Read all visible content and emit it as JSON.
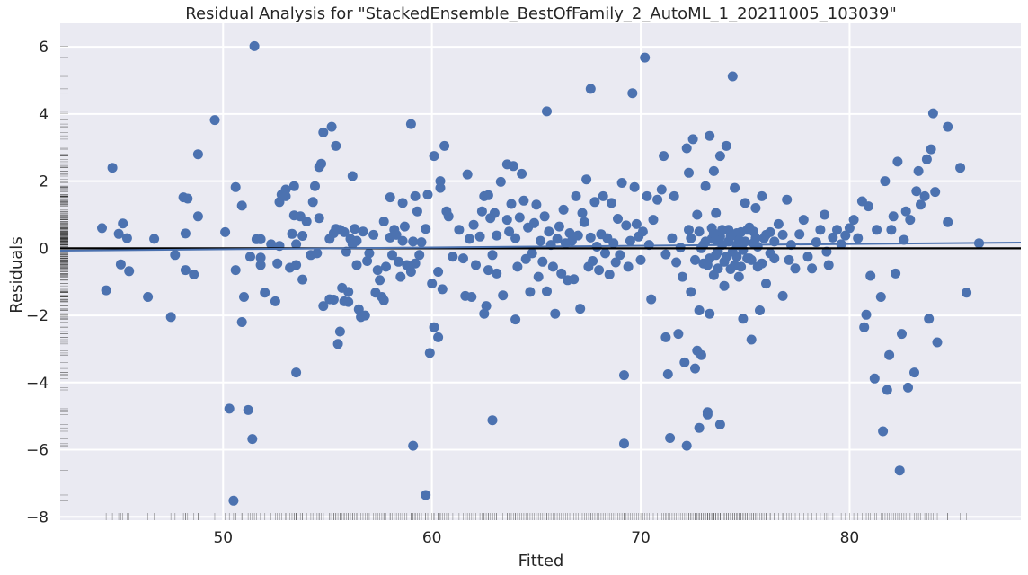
{
  "chart_data": {
    "type": "scatter",
    "title": "Residual Analysis for \"StackedEnsemble_BestOfFamily_2_AutoML_1_20211005_103039\"",
    "xlabel": "Fitted",
    "ylabel": "Residuals",
    "xlim": [
      42.2,
      88.2
    ],
    "ylim": [
      -8.1,
      6.7
    ],
    "xticks": [
      50,
      60,
      70,
      80
    ],
    "yticks": [
      -8,
      -6,
      -4,
      -2,
      0,
      2,
      4,
      6
    ],
    "grid": true,
    "colors": {
      "background": "#eaeaf2",
      "grid": "#ffffff",
      "points": "#4c72b0",
      "zero_line": "#000000",
      "trend_line": "#4c72b0",
      "rug": "#333333"
    },
    "zero_line": 0,
    "trend_line": {
      "x": [
        42.2,
        88.2
      ],
      "y": [
        -0.07,
        0.17
      ]
    },
    "rug": true,
    "points": [
      [
        44.2,
        0.6
      ],
      [
        44.4,
        -1.25
      ],
      [
        44.7,
        2.4
      ],
      [
        45.0,
        0.43
      ],
      [
        45.1,
        -0.48
      ],
      [
        45.2,
        0.74
      ],
      [
        45.4,
        0.3
      ],
      [
        45.5,
        -0.68
      ],
      [
        46.4,
        -1.45
      ],
      [
        46.7,
        0.28
      ],
      [
        47.5,
        -2.05
      ],
      [
        47.7,
        -0.2
      ],
      [
        48.1,
        1.52
      ],
      [
        48.2,
        0.44
      ],
      [
        48.3,
        1.48
      ],
      [
        48.2,
        -0.65
      ],
      [
        48.6,
        -0.78
      ],
      [
        48.8,
        2.8
      ],
      [
        48.8,
        0.95
      ],
      [
        49.6,
        3.82
      ],
      [
        50.1,
        0.48
      ],
      [
        50.3,
        -4.78
      ],
      [
        50.5,
        -7.52
      ],
      [
        50.6,
        1.82
      ],
      [
        50.6,
        -0.65
      ],
      [
        50.9,
        -2.2
      ],
      [
        50.9,
        1.27
      ],
      [
        51.0,
        -1.45
      ],
      [
        51.2,
        -4.82
      ],
      [
        51.3,
        -0.25
      ],
      [
        51.4,
        -5.68
      ],
      [
        51.5,
        6.02
      ],
      [
        51.6,
        0.27
      ],
      [
        51.8,
        0.27
      ],
      [
        51.8,
        -0.5
      ],
      [
        51.8,
        -0.28
      ],
      [
        52.0,
        -1.32
      ],
      [
        52.3,
        0.12
      ],
      [
        52.6,
        -0.45
      ],
      [
        52.5,
        -1.58
      ],
      [
        52.7,
        0.07
      ],
      [
        52.7,
        1.38
      ],
      [
        52.8,
        1.6
      ],
      [
        53.0,
        1.75
      ],
      [
        53.0,
        1.55
      ],
      [
        53.3,
        0.43
      ],
      [
        53.2,
        -0.58
      ],
      [
        53.4,
        0.98
      ],
      [
        53.5,
        -3.7
      ],
      [
        53.4,
        1.85
      ],
      [
        53.5,
        0.12
      ],
      [
        53.5,
        -0.5
      ],
      [
        53.7,
        0.95
      ],
      [
        53.8,
        -0.93
      ],
      [
        53.8,
        0.37
      ],
      [
        54.2,
        -0.2
      ],
      [
        54.0,
        0.8
      ],
      [
        54.3,
        1.38
      ],
      [
        54.4,
        1.85
      ],
      [
        54.5,
        -0.15
      ],
      [
        54.6,
        0.9
      ],
      [
        54.6,
        2.42
      ],
      [
        54.7,
        2.52
      ],
      [
        54.8,
        3.45
      ],
      [
        54.8,
        -1.72
      ],
      [
        55.1,
        0.28
      ],
      [
        55.2,
        3.62
      ],
      [
        55.1,
        -1.52
      ],
      [
        55.3,
        0.45
      ],
      [
        55.3,
        -1.53
      ],
      [
        55.4,
        3.05
      ],
      [
        55.4,
        0.58
      ],
      [
        55.5,
        -2.85
      ],
      [
        55.6,
        0.55
      ],
      [
        55.6,
        -2.48
      ],
      [
        55.7,
        -1.18
      ],
      [
        55.8,
        -1.58
      ],
      [
        55.8,
        0.48
      ],
      [
        55.9,
        -0.1
      ],
      [
        56.0,
        -1.3
      ],
      [
        56.0,
        -1.6
      ],
      [
        56.1,
        0.28
      ],
      [
        56.2,
        2.15
      ],
      [
        56.2,
        0.12
      ],
      [
        56.3,
        0.58
      ],
      [
        56.4,
        -0.5
      ],
      [
        56.4,
        0.22
      ],
      [
        56.5,
        -1.82
      ],
      [
        56.6,
        -2.05
      ],
      [
        56.7,
        0.5
      ],
      [
        56.8,
        -2.0
      ],
      [
        56.9,
        -0.38
      ],
      [
        57.0,
        -0.15
      ],
      [
        57.2,
        0.4
      ],
      [
        57.3,
        -1.32
      ],
      [
        57.4,
        -0.65
      ],
      [
        57.5,
        -0.95
      ],
      [
        57.6,
        -1.45
      ],
      [
        57.7,
        0.8
      ],
      [
        57.7,
        -1.55
      ],
      [
        57.8,
        -0.55
      ],
      [
        58.0,
        0.32
      ],
      [
        58.0,
        1.52
      ],
      [
        58.1,
        -0.2
      ],
      [
        58.2,
        0.55
      ],
      [
        58.3,
        0.4
      ],
      [
        58.4,
        -0.4
      ],
      [
        58.5,
        -0.85
      ],
      [
        58.6,
        0.22
      ],
      [
        58.6,
        1.35
      ],
      [
        58.7,
        0.65
      ],
      [
        58.8,
        -0.5
      ],
      [
        59.0,
        3.7
      ],
      [
        59.0,
        -0.7
      ],
      [
        59.1,
        0.2
      ],
      [
        59.1,
        -5.88
      ],
      [
        59.2,
        1.55
      ],
      [
        59.2,
        -0.45
      ],
      [
        59.3,
        1.1
      ],
      [
        59.4,
        -0.2
      ],
      [
        59.5,
        0.18
      ],
      [
        59.7,
        -7.35
      ],
      [
        59.7,
        0.58
      ],
      [
        59.8,
        1.6
      ],
      [
        59.9,
        -3.12
      ],
      [
        60.0,
        -1.05
      ],
      [
        60.1,
        2.75
      ],
      [
        60.1,
        -2.35
      ],
      [
        60.3,
        -2.65
      ],
      [
        60.3,
        -0.7
      ],
      [
        60.4,
        1.8
      ],
      [
        60.4,
        2.0
      ],
      [
        60.5,
        -1.22
      ],
      [
        60.6,
        3.05
      ],
      [
        60.7,
        1.1
      ],
      [
        60.8,
        0.95
      ],
      [
        61.0,
        -0.25
      ],
      [
        61.3,
        0.55
      ],
      [
        61.5,
        -0.3
      ],
      [
        61.6,
        -1.42
      ],
      [
        61.7,
        2.2
      ],
      [
        61.8,
        0.28
      ],
      [
        61.9,
        -1.45
      ],
      [
        62.0,
        0.7
      ],
      [
        62.1,
        -0.5
      ],
      [
        62.3,
        0.35
      ],
      [
        62.4,
        1.1
      ],
      [
        62.5,
        1.55
      ],
      [
        62.5,
        -1.95
      ],
      [
        62.6,
        -1.72
      ],
      [
        62.7,
        1.58
      ],
      [
        62.7,
        -0.65
      ],
      [
        62.8,
        0.9
      ],
      [
        62.9,
        -0.2
      ],
      [
        62.9,
        -5.12
      ],
      [
        63.0,
        1.05
      ],
      [
        63.1,
        0.38
      ],
      [
        63.1,
        -0.75
      ],
      [
        63.3,
        1.98
      ],
      [
        63.4,
        -1.4
      ],
      [
        63.6,
        2.5
      ],
      [
        63.6,
        0.85
      ],
      [
        63.7,
        0.5
      ],
      [
        63.8,
        1.32
      ],
      [
        63.9,
        2.45
      ],
      [
        64.0,
        -2.12
      ],
      [
        64.0,
        0.3
      ],
      [
        64.1,
        -0.55
      ],
      [
        64.2,
        0.92
      ],
      [
        64.3,
        2.22
      ],
      [
        64.4,
        1.42
      ],
      [
        64.5,
        -0.32
      ],
      [
        64.6,
        0.62
      ],
      [
        64.7,
        -1.3
      ],
      [
        64.8,
        -0.15
      ],
      [
        64.9,
        0.75
      ],
      [
        65.0,
        1.3
      ],
      [
        65.1,
        -0.85
      ],
      [
        65.2,
        0.22
      ],
      [
        65.3,
        -0.4
      ],
      [
        65.4,
        0.95
      ],
      [
        65.5,
        4.08
      ],
      [
        65.5,
        -1.28
      ],
      [
        65.6,
        0.5
      ],
      [
        65.7,
        0.1
      ],
      [
        65.8,
        -0.55
      ],
      [
        65.9,
        -1.95
      ],
      [
        66.0,
        0.28
      ],
      [
        66.1,
        0.65
      ],
      [
        66.2,
        -0.75
      ],
      [
        66.3,
        1.15
      ],
      [
        66.4,
        0.15
      ],
      [
        66.5,
        -0.95
      ],
      [
        66.6,
        0.45
      ],
      [
        66.7,
        0.22
      ],
      [
        66.8,
        -0.92
      ],
      [
        66.9,
        1.55
      ],
      [
        67.0,
        0.38
      ],
      [
        67.1,
        -1.8
      ],
      [
        67.2,
        1.05
      ],
      [
        67.3,
        0.78
      ],
      [
        67.4,
        2.05
      ],
      [
        67.5,
        -0.55
      ],
      [
        67.6,
        4.75
      ],
      [
        67.6,
        0.32
      ],
      [
        67.7,
        -0.38
      ],
      [
        67.8,
        1.38
      ],
      [
        67.9,
        0.05
      ],
      [
        68.0,
        -0.65
      ],
      [
        68.1,
        0.42
      ],
      [
        68.2,
        1.55
      ],
      [
        68.3,
        -0.15
      ],
      [
        68.4,
        0.3
      ],
      [
        68.5,
        -0.78
      ],
      [
        68.6,
        1.35
      ],
      [
        68.7,
        0.15
      ],
      [
        68.8,
        -0.42
      ],
      [
        68.9,
        0.88
      ],
      [
        69.0,
        -0.2
      ],
      [
        69.1,
        1.95
      ],
      [
        69.2,
        -3.78
      ],
      [
        69.2,
        -5.82
      ],
      [
        69.3,
        0.68
      ],
      [
        69.4,
        -0.55
      ],
      [
        69.5,
        0.22
      ],
      [
        69.6,
        4.62
      ],
      [
        69.7,
        1.82
      ],
      [
        69.8,
        0.72
      ],
      [
        69.9,
        0.35
      ],
      [
        70.0,
        -0.35
      ],
      [
        70.1,
        0.5
      ],
      [
        70.2,
        5.68
      ],
      [
        70.3,
        1.55
      ],
      [
        70.4,
        0.1
      ],
      [
        70.5,
        -1.52
      ],
      [
        70.6,
        0.85
      ],
      [
        70.8,
        1.45
      ],
      [
        71.0,
        1.75
      ],
      [
        71.1,
        2.75
      ],
      [
        71.2,
        -2.65
      ],
      [
        71.2,
        -0.18
      ],
      [
        71.3,
        -3.75
      ],
      [
        71.4,
        -5.65
      ],
      [
        71.5,
        0.3
      ],
      [
        71.6,
        1.55
      ],
      [
        71.7,
        -0.42
      ],
      [
        71.8,
        -2.55
      ],
      [
        71.9,
        0.02
      ],
      [
        72.0,
        -0.85
      ],
      [
        72.1,
        -3.4
      ],
      [
        72.2,
        2.98
      ],
      [
        72.2,
        -5.88
      ],
      [
        72.3,
        0.55
      ],
      [
        72.3,
        2.25
      ],
      [
        72.4,
        -1.3
      ],
      [
        72.5,
        3.25
      ],
      [
        72.6,
        -3.58
      ],
      [
        72.7,
        1.0
      ],
      [
        72.7,
        -3.05
      ],
      [
        72.8,
        -5.35
      ],
      [
        72.8,
        -1.85
      ],
      [
        72.9,
        -3.18
      ],
      [
        73.0,
        -0.45
      ],
      [
        73.1,
        1.85
      ],
      [
        73.2,
        -4.88
      ],
      [
        73.2,
        -4.95
      ],
      [
        73.3,
        3.35
      ],
      [
        73.3,
        -1.95
      ],
      [
        73.4,
        0.28
      ],
      [
        73.5,
        2.3
      ],
      [
        73.5,
        -0.8
      ],
      [
        73.6,
        1.05
      ],
      [
        73.7,
        -0.1
      ],
      [
        73.8,
        2.75
      ],
      [
        73.8,
        -5.25
      ],
      [
        73.9,
        0.55
      ],
      [
        74.0,
        -1.12
      ],
      [
        74.1,
        3.05
      ],
      [
        74.2,
        0.2
      ],
      [
        74.3,
        -0.62
      ],
      [
        74.4,
        5.12
      ],
      [
        74.5,
        1.8
      ],
      [
        74.6,
        0.1
      ],
      [
        74.7,
        -0.85
      ],
      [
        74.8,
        0.48
      ],
      [
        74.9,
        -2.1
      ],
      [
        75.0,
        1.35
      ],
      [
        75.1,
        -0.3
      ],
      [
        75.2,
        0.62
      ],
      [
        75.3,
        -2.72
      ],
      [
        75.4,
        0.15
      ],
      [
        75.5,
        1.2
      ],
      [
        75.6,
        -0.55
      ],
      [
        75.7,
        -1.85
      ],
      [
        75.8,
        1.55
      ],
      [
        75.9,
        0.3
      ],
      [
        76.0,
        -1.05
      ],
      [
        76.2,
        0.48
      ],
      [
        76.4,
        -0.3
      ],
      [
        76.6,
        0.72
      ],
      [
        76.8,
        -1.42
      ],
      [
        77.0,
        1.45
      ],
      [
        77.2,
        0.1
      ],
      [
        77.4,
        -0.6
      ],
      [
        77.6,
        0.42
      ],
      [
        77.8,
        0.85
      ],
      [
        78.0,
        -0.25
      ],
      [
        78.2,
        -0.6
      ],
      [
        78.4,
        0.18
      ],
      [
        78.6,
        0.55
      ],
      [
        78.8,
        1.0
      ],
      [
        79.0,
        -0.5
      ],
      [
        79.2,
        0.32
      ],
      [
        79.4,
        0.55
      ],
      [
        79.6,
        0.12
      ],
      [
        79.8,
        0.38
      ],
      [
        80.0,
        0.6
      ],
      [
        80.2,
        0.85
      ],
      [
        80.4,
        0.3
      ],
      [
        80.6,
        1.4
      ],
      [
        80.7,
        -2.35
      ],
      [
        80.8,
        -1.98
      ],
      [
        80.9,
        1.25
      ],
      [
        81.0,
        -0.82
      ],
      [
        81.2,
        -3.88
      ],
      [
        81.3,
        0.55
      ],
      [
        81.5,
        -1.45
      ],
      [
        81.6,
        -5.45
      ],
      [
        81.7,
        2.0
      ],
      [
        81.8,
        -4.22
      ],
      [
        81.9,
        -3.18
      ],
      [
        82.0,
        0.55
      ],
      [
        82.1,
        0.95
      ],
      [
        82.2,
        -0.75
      ],
      [
        82.3,
        2.58
      ],
      [
        82.4,
        -6.62
      ],
      [
        82.5,
        -2.55
      ],
      [
        82.6,
        0.25
      ],
      [
        82.7,
        1.1
      ],
      [
        82.8,
        -4.15
      ],
      [
        82.9,
        0.85
      ],
      [
        83.1,
        -3.7
      ],
      [
        83.2,
        1.7
      ],
      [
        83.3,
        2.3
      ],
      [
        83.4,
        1.3
      ],
      [
        83.6,
        1.55
      ],
      [
        83.7,
        2.65
      ],
      [
        83.8,
        -2.1
      ],
      [
        83.9,
        2.95
      ],
      [
        84.0,
        4.02
      ],
      [
        84.1,
        1.68
      ],
      [
        84.2,
        -2.8
      ],
      [
        84.7,
        3.62
      ],
      [
        84.7,
        0.78
      ],
      [
        85.3,
        2.4
      ],
      [
        85.6,
        -1.32
      ],
      [
        86.2,
        0.15
      ],
      [
        72.4,
        0.3
      ],
      [
        72.6,
        -0.35
      ],
      [
        72.8,
        0.5
      ],
      [
        73.0,
        0.1
      ],
      [
        73.2,
        -0.5
      ],
      [
        73.4,
        0.6
      ],
      [
        73.6,
        -0.2
      ],
      [
        73.8,
        0.35
      ],
      [
        74.0,
        -0.4
      ],
      [
        74.2,
        0.55
      ],
      [
        74.4,
        -0.1
      ],
      [
        74.6,
        0.45
      ],
      [
        74.8,
        -0.55
      ],
      [
        75.0,
        0.2
      ],
      [
        75.2,
        -0.3
      ],
      [
        75.4,
        0.5
      ],
      [
        75.6,
        0.05
      ],
      [
        75.8,
        -0.45
      ],
      [
        76.0,
        0.4
      ],
      [
        76.2,
        -0.15
      ],
      [
        73.1,
        0.2
      ],
      [
        73.3,
        -0.3
      ],
      [
        73.5,
        0.45
      ],
      [
        73.7,
        -0.6
      ],
      [
        73.9,
        0.1
      ],
      [
        74.1,
        -0.25
      ],
      [
        74.3,
        0.35
      ],
      [
        74.5,
        -0.5
      ],
      [
        74.7,
        0.25
      ],
      [
        74.9,
        -0.05
      ],
      [
        75.1,
        0.55
      ],
      [
        75.3,
        -0.35
      ],
      [
        72.9,
        0.0
      ],
      [
        73.6,
        0.25
      ],
      [
        74.6,
        -0.25
      ],
      [
        75.5,
        0.3
      ],
      [
        76.4,
        0.2
      ],
      [
        76.8,
        0.4
      ],
      [
        77.1,
        -0.35
      ],
      [
        78.9,
        -0.1
      ]
    ]
  }
}
